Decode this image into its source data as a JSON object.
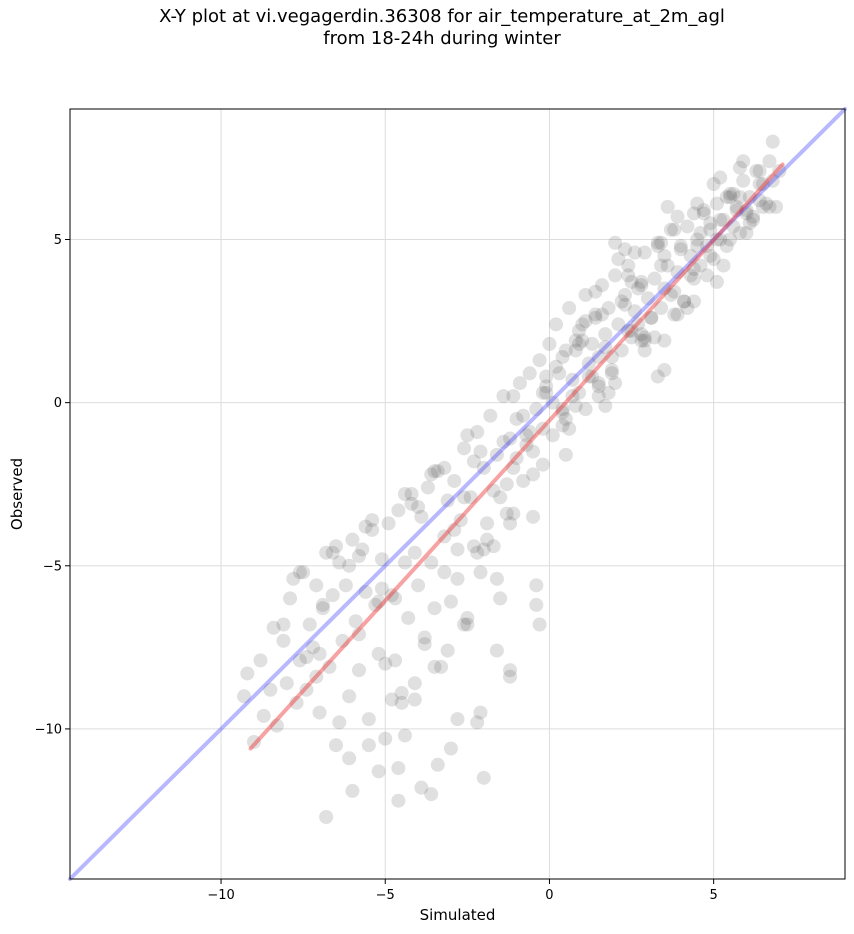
{
  "chart_data": {
    "type": "scatter",
    "title_lines": [
      "X-Y plot at vi.vegagerdin.36308 for air_temperature_at_2m_agl",
      "from 18-24h during winter"
    ],
    "xlabel": "Simulated",
    "ylabel": "Observed",
    "xlim": [
      -14.6,
      9.0
    ],
    "ylim": [
      -14.6,
      9.0
    ],
    "xticks": [
      -10,
      -5,
      0,
      5
    ],
    "yticks": [
      -10,
      -5,
      0,
      5
    ],
    "xtick_labels": [
      "−10",
      "−5",
      "0",
      "5"
    ],
    "ytick_labels": [
      "−10",
      "−5",
      "0",
      "5"
    ],
    "grid": true,
    "reference_line": {
      "color": "#3333ff",
      "from": [
        -14.6,
        -14.6
      ],
      "to": [
        9.0,
        9.0
      ]
    },
    "regression_line": {
      "color": "#ee3333",
      "from": [
        -9.1,
        -10.6
      ],
      "to": [
        7.1,
        7.3
      ]
    },
    "point_color": "#555555",
    "points": {
      "x": [
        -9.3,
        -9.2,
        -9.0,
        -8.8,
        -8.7,
        -8.5,
        -8.4,
        -8.3,
        -8.1,
        -8.0,
        -7.9,
        -7.7,
        -7.6,
        -7.5,
        -7.4,
        -7.3,
        -7.2,
        -7.1,
        -7.0,
        -6.9,
        -6.8,
        -6.7,
        -6.6,
        -6.5,
        -6.4,
        -6.3,
        -6.2,
        -6.1,
        -6.0,
        -5.9,
        -5.8,
        -5.7,
        -5.6,
        -5.5,
        -5.4,
        -5.3,
        -5.2,
        -5.1,
        -5.0,
        -4.9,
        -4.8,
        -4.7,
        -4.6,
        -4.5,
        -4.4,
        -4.3,
        -4.2,
        -4.1,
        -4.0,
        -3.9,
        -3.8,
        -3.7,
        -3.6,
        -3.5,
        -3.4,
        -3.3,
        -3.2,
        -3.1,
        -3.0,
        -2.9,
        -2.8,
        -2.7,
        -2.6,
        -2.5,
        -2.4,
        -2.3,
        -2.2,
        -2.1,
        -2.0,
        -1.9,
        -1.8,
        -1.7,
        -1.6,
        -1.5,
        -1.4,
        -1.3,
        -1.2,
        -1.1,
        -1.0,
        -0.9,
        -0.8,
        -0.7,
        -0.6,
        -0.5,
        -0.4,
        -0.3,
        -0.2,
        -0.1,
        0.0,
        0.1,
        0.2,
        0.3,
        0.4,
        0.5,
        0.6,
        0.7,
        0.8,
        0.9,
        1.0,
        1.1,
        1.2,
        1.3,
        1.4,
        1.5,
        1.6,
        1.7,
        1.8,
        1.9,
        2.0,
        2.1,
        2.2,
        2.3,
        2.4,
        2.5,
        2.6,
        2.7,
        2.8,
        2.9,
        3.0,
        3.1,
        3.2,
        3.3,
        3.4,
        3.5,
        3.6,
        3.7,
        3.8,
        3.9,
        4.0,
        4.1,
        4.2,
        4.3,
        4.4,
        4.5,
        4.6,
        4.7,
        4.8,
        4.9,
        5.0,
        5.1,
        5.2,
        5.3,
        5.4,
        5.5,
        5.6,
        5.7,
        5.8,
        5.9,
        6.0,
        6.1,
        6.2,
        6.3,
        6.4,
        6.5,
        6.6,
        6.7,
        6.8,
        6.9,
        7.0,
        -7.8,
        -7.4,
        -6.9,
        -6.5,
        -6.1,
        -5.8,
        -5.4,
        -5.0,
        -4.7,
        -4.4,
        -4.1,
        -3.8,
        -3.5,
        -3.2,
        -2.9,
        -2.6,
        -2.3,
        -2.0,
        -1.7,
        -1.4,
        -1.1,
        -0.8,
        -0.5,
        -0.2,
        0.1,
        0.4,
        0.7,
        1.0,
        1.3,
        1.6,
        1.9,
        2.2,
        2.5,
        2.8,
        3.1,
        3.4,
        3.7,
        4.0,
        4.3,
        4.6,
        4.9,
        5.2,
        5.5,
        5.8,
        6.1,
        6.4,
        6.7,
        -8.1,
        -7.6,
        -7.1,
        -6.6,
        -6.1,
        -5.6,
        -5.1,
        -4.6,
        -4.1,
        -3.6,
        -3.1,
        -2.6,
        -2.1,
        -1.6,
        -1.1,
        -0.6,
        -0.1,
        0.4,
        0.9,
        1.4,
        1.9,
        2.4,
        2.9,
        3.4,
        3.9,
        4.4,
        4.9,
        5.4,
        5.9,
        6.4,
        -7.0,
        -6.4,
        -5.8,
        -5.2,
        -4.6,
        -4.0,
        -3.4,
        -2.8,
        -2.2,
        -1.6,
        -1.0,
        -0.4,
        0.2,
        0.8,
        1.4,
        2.0,
        2.6,
        3.2,
        3.8,
        4.4,
        5.0,
        5.6,
        6.2,
        6.8,
        -6.8,
        -6.0,
        -5.2,
        -4.4,
        -3.6,
        -2.8,
        -2.0,
        -1.2,
        -0.4,
        0.4,
        1.2,
        2.0,
        2.8,
        3.6,
        4.4,
        5.2,
        6.0,
        -5.5,
        -4.5,
        -3.5,
        -2.5,
        -1.5,
        -0.5,
        0.5,
        1.5,
        2.5,
        3.5,
        4.5,
        5.5,
        6.5,
        -4.2,
        -3.2,
        -2.2,
        -1.2,
        -0.2,
        0.8,
        1.8,
        2.8,
        3.8,
        4.8,
        5.8,
        -4.8,
        -3.9,
        -3.0,
        -2.1,
        -1.2,
        -0.3,
        0.6,
        1.5,
        2.4,
        3.3,
        4.2,
        5.1,
        6.0,
        1.1,
        1.7,
        2.3,
        2.9,
        3.5,
        4.1,
        4.7,
        5.3,
        0.9,
        1.5,
        2.1,
        2.7,
        3.3,
        3.9,
        4.5,
        5.1,
        5.7,
        -2.5,
        -1.9,
        -1.3,
        -0.7,
        -0.1,
        0.5,
        1.1,
        1.7,
        2.3,
        2.9,
        3.5
      ],
      "y": [
        -9.0,
        -8.3,
        -10.4,
        -7.9,
        -9.6,
        -8.8,
        -6.9,
        -9.9,
        -7.3,
        -8.6,
        -6.0,
        -9.2,
        -7.9,
        -5.2,
        -8.8,
        -6.8,
        -7.5,
        -5.6,
        -9.5,
        -6.3,
        -4.6,
        -8.1,
        -5.9,
        -10.5,
        -4.9,
        -7.3,
        -5.6,
        -9.0,
        -4.2,
        -6.7,
        -8.2,
        -4.5,
        -5.8,
        -9.7,
        -3.9,
        -6.2,
        -7.7,
        -4.8,
        -10.3,
        -3.7,
        -5.9,
        -7.9,
        -3.3,
        -8.9,
        -4.9,
        -6.6,
        -2.8,
        -9.1,
        -5.6,
        -3.5,
        -7.2,
        -2.6,
        -4.9,
        -6.3,
        -2.1,
        -8.1,
        -4.1,
        -3.0,
        -6.1,
        -2.4,
        -5.4,
        -3.6,
        -1.4,
        -6.6,
        -2.9,
        -4.4,
        -0.9,
        -5.2,
        -2.0,
        -3.7,
        -0.4,
        -4.4,
        -1.6,
        -2.9,
        0.2,
        -3.4,
        -1.1,
        -2.0,
        -0.5,
        0.6,
        -2.4,
        -1.0,
        0.9,
        -1.5,
        -0.2,
        1.3,
        -0.8,
        0.5,
        1.8,
        0.0,
        2.4,
        0.9,
        -0.2,
        1.6,
        2.9,
        0.7,
        1.9,
        0.3,
        2.4,
        3.3,
        1.2,
        1.8,
        2.6,
        0.6,
        3.6,
        1.7,
        2.9,
        1.0,
        3.9,
        2.4,
        1.6,
        3.0,
        4.2,
        2.2,
        2.8,
        3.5,
        1.9,
        4.6,
        3.2,
        2.6,
        3.8,
        4.9,
        2.9,
        3.5,
        4.2,
        5.3,
        3.4,
        4.0,
        4.7,
        3.1,
        5.4,
        4.5,
        3.8,
        5.0,
        4.2,
        5.8,
        4.8,
        5.3,
        4.4,
        6.1,
        5.0,
        5.6,
        4.8,
        6.4,
        5.4,
        6.0,
        5.2,
        6.8,
        5.8,
        6.3,
        5.7,
        7.1,
        6.2,
        6.7,
        6.1,
        7.4,
        6.8,
        6.0,
        7.1,
        -5.4,
        -7.8,
        -6.2,
        -4.4,
        -5.0,
        -7.1,
        -3.6,
        -8.0,
        -6.0,
        -2.8,
        -4.6,
        -7.4,
        -2.1,
        -5.2,
        -3.9,
        -6.8,
        -1.8,
        -4.5,
        -2.7,
        -1.2,
        -3.4,
        -0.4,
        -2.2,
        0.3,
        -1.0,
        1.4,
        0.2,
        1.9,
        0.8,
        2.7,
        1.4,
        3.1,
        2.0,
        3.7,
        2.6,
        4.2,
        3.3,
        4.8,
        3.9,
        5.2,
        4.5,
        5.6,
        5.0,
        6.3,
        5.5,
        6.7,
        6.0,
        -6.8,
        -5.2,
        -8.4,
        -4.6,
        -10.9,
        -3.8,
        -5.7,
        -11.2,
        -8.6,
        -2.2,
        -7.6,
        -2.9,
        -1.5,
        -5.4,
        0.2,
        -0.9,
        0.8,
        -0.3,
        2.2,
        2.7,
        0.9,
        3.9,
        1.6,
        4.9,
        2.7,
        5.8,
        5.5,
        6.3,
        7.4,
        7.1,
        -7.7,
        -9.8,
        -4.7,
        -6.1,
        -12.2,
        -3.2,
        -11.1,
        -4.5,
        -9.8,
        -7.6,
        -1.7,
        -5.6,
        1.1,
        -0.1,
        3.4,
        0.6,
        4.6,
        2.0,
        5.3,
        3.1,
        6.7,
        6.4,
        5.6,
        8.0,
        -12.7,
        -11.9,
        -11.3,
        -10.2,
        -12.0,
        -9.7,
        -11.5,
        -8.4,
        -6.2,
        -0.7,
        0.8,
        4.9,
        2.1,
        6.0,
        4.1,
        6.9,
        5.2,
        -10.5,
        -9.2,
        -8.1,
        -6.8,
        -6.0,
        -3.5,
        -1.6,
        0.5,
        3.7,
        1.9,
        4.8,
        6.3,
        6.0,
        -3.1,
        -2.0,
        -4.6,
        -3.7,
        -1.9,
        1.6,
        0.3,
        3.6,
        2.7,
        3.9,
        7.2,
        -9.1,
        -11.8,
        -10.6,
        -9.5,
        -8.2,
        -6.8,
        -0.8,
        1.4,
        2.2,
        0.8,
        2.9,
        3.7,
        5.9,
        -0.2,
        2.1,
        3.3,
        1.9,
        4.5,
        3.1,
        5.9,
        4.2,
        1.8,
        0.2,
        4.4,
        2.4,
        4.8,
        5.7,
        6.1,
        5.0,
        5.9,
        -1.0,
        -4.2,
        -2.5,
        -1.3,
        0.3,
        -0.5,
        2.5,
        -0.1,
        4.7,
        2.0,
        1.0
      ]
    }
  }
}
